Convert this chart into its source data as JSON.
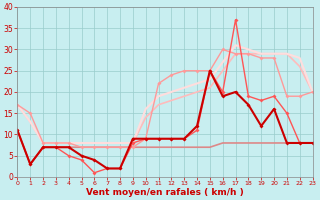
{
  "xlabel": "Vent moyen/en rafales ( km/h )",
  "xlim": [
    0,
    23
  ],
  "ylim": [
    0,
    40
  ],
  "yticks": [
    0,
    5,
    10,
    15,
    20,
    25,
    30,
    35,
    40
  ],
  "xticks": [
    0,
    1,
    2,
    3,
    4,
    5,
    6,
    7,
    8,
    9,
    10,
    11,
    12,
    13,
    14,
    15,
    16,
    17,
    18,
    19,
    20,
    21,
    22,
    23
  ],
  "background_color": "#c8eef0",
  "grid_color": "#99cccc",
  "lines": [
    {
      "x": [
        0,
        1,
        2,
        3,
        4,
        5,
        6,
        7,
        8,
        9,
        10,
        11,
        12,
        13,
        14,
        15,
        16,
        17,
        18,
        19,
        20,
        21,
        22,
        23
      ],
      "y": [
        11,
        3,
        7,
        7,
        7,
        7,
        7,
        7,
        7,
        7,
        7,
        7,
        7,
        7,
        7,
        7,
        8,
        8,
        8,
        8,
        8,
        8,
        8,
        8
      ],
      "color": "#dd8888",
      "lw": 1.2,
      "marker": null,
      "ms": 0
    },
    {
      "x": [
        0,
        1,
        2,
        3,
        4,
        5,
        6,
        7,
        8,
        9,
        10,
        11,
        12,
        13,
        14,
        15,
        16,
        17,
        18,
        19,
        20,
        21,
        22,
        23
      ],
      "y": [
        17,
        13,
        8,
        8,
        8,
        8,
        8,
        8,
        8,
        8,
        14,
        17,
        18,
        19,
        20,
        21,
        25,
        29,
        29,
        29,
        29,
        29,
        26,
        20
      ],
      "color": "#ffbbbb",
      "lw": 1.2,
      "marker": null,
      "ms": 0
    },
    {
      "x": [
        0,
        1,
        2,
        3,
        4,
        5,
        6,
        7,
        8,
        9,
        10,
        11,
        12,
        13,
        14,
        15,
        16,
        17,
        18,
        19,
        20,
        21,
        22,
        23
      ],
      "y": [
        17,
        13,
        8,
        8,
        8,
        8,
        8,
        8,
        8,
        8,
        16,
        19,
        20,
        21,
        22,
        23,
        27,
        31,
        30,
        29,
        29,
        29,
        28,
        20
      ],
      "color": "#ffdddd",
      "lw": 1.5,
      "marker": null,
      "ms": 0
    },
    {
      "x": [
        0,
        1,
        2,
        3,
        4,
        5,
        6,
        7,
        8,
        9,
        10,
        11,
        12,
        13,
        14,
        15,
        16,
        17,
        18,
        19,
        20,
        21,
        22,
        23
      ],
      "y": [
        17,
        15,
        8,
        8,
        8,
        7,
        7,
        7,
        7,
        7,
        9,
        22,
        24,
        25,
        25,
        25,
        30,
        29,
        29,
        28,
        28,
        19,
        19,
        20
      ],
      "color": "#ff9999",
      "lw": 1.0,
      "marker": "D",
      "ms": 2,
      "mew": 0
    },
    {
      "x": [
        0,
        1,
        2,
        3,
        4,
        5,
        6,
        7,
        8,
        9,
        10,
        11,
        12,
        13,
        14,
        15,
        16,
        17,
        18,
        19,
        20,
        21,
        22,
        23
      ],
      "y": [
        11,
        3,
        7,
        7,
        5,
        4,
        1,
        2,
        2,
        8,
        9,
        9,
        9,
        9,
        11,
        25,
        20,
        37,
        19,
        18,
        19,
        15,
        8,
        8
      ],
      "color": "#ff5555",
      "lw": 1.0,
      "marker": "D",
      "ms": 2,
      "mew": 0
    },
    {
      "x": [
        0,
        1,
        2,
        3,
        4,
        5,
        6,
        7,
        8,
        9,
        10,
        11,
        12,
        13,
        14,
        15,
        16,
        17,
        18,
        19,
        20,
        21,
        22,
        23
      ],
      "y": [
        11,
        3,
        7,
        7,
        7,
        5,
        4,
        2,
        2,
        9,
        9,
        9,
        9,
        9,
        12,
        25,
        19,
        20,
        17,
        12,
        16,
        8,
        8,
        8
      ],
      "color": "#cc0000",
      "lw": 1.5,
      "marker": "D",
      "ms": 2,
      "mew": 0
    }
  ]
}
